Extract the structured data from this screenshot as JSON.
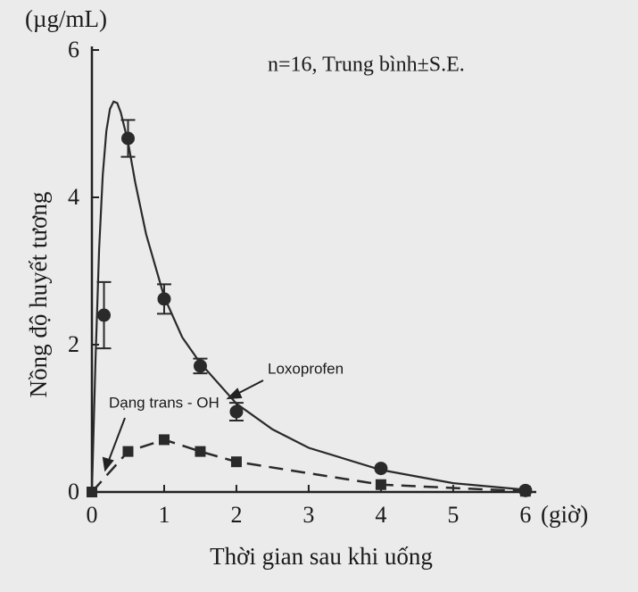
{
  "chart_data": {
    "type": "line",
    "y_unit": "(µg/mL)",
    "y_label": "Nồng độ huyết tương",
    "x_label": "Thời gian sau khi uống",
    "x_unit": "(giờ)",
    "annotation": "n=16, Trung bình±S.E.",
    "xlim": [
      0,
      6.15
    ],
    "ylim": [
      0,
      6
    ],
    "xticks": [
      0,
      1,
      2,
      3,
      4,
      5,
      6
    ],
    "yticks": [
      0,
      2,
      4,
      6
    ],
    "series": [
      {
        "name": "Loxoprofen",
        "color": "#2a2a2a",
        "marker": "circle",
        "line": "solid",
        "x": [
          0.167,
          0.5,
          1,
          1.5,
          2,
          4,
          6
        ],
        "values": [
          2.4,
          4.8,
          2.62,
          1.71,
          1.09,
          0.32,
          0.02
        ],
        "errors": [
          0.45,
          0.25,
          0.2,
          0.1,
          0.12,
          null,
          null
        ],
        "curve": {
          "x": [
            0,
            0.05,
            0.1,
            0.15,
            0.2,
            0.25,
            0.3,
            0.35,
            0.4,
            0.5,
            0.6,
            0.75,
            1,
            1.25,
            1.5,
            2,
            2.5,
            3,
            4,
            5,
            6
          ],
          "values": [
            0,
            1.8,
            3.3,
            4.3,
            4.9,
            5.2,
            5.3,
            5.28,
            5.15,
            4.75,
            4.2,
            3.5,
            2.65,
            2.1,
            1.75,
            1.2,
            0.85,
            0.6,
            0.3,
            0.12,
            0.03
          ]
        }
      },
      {
        "name": "Dạng trans - OH",
        "color": "#2a2a2a",
        "marker": "square",
        "line": "dashed",
        "x": [
          0,
          0.5,
          1,
          1.5,
          2,
          4,
          6
        ],
        "values": [
          0,
          0.55,
          0.71,
          0.55,
          0.41,
          0.1,
          0.01
        ]
      }
    ]
  }
}
